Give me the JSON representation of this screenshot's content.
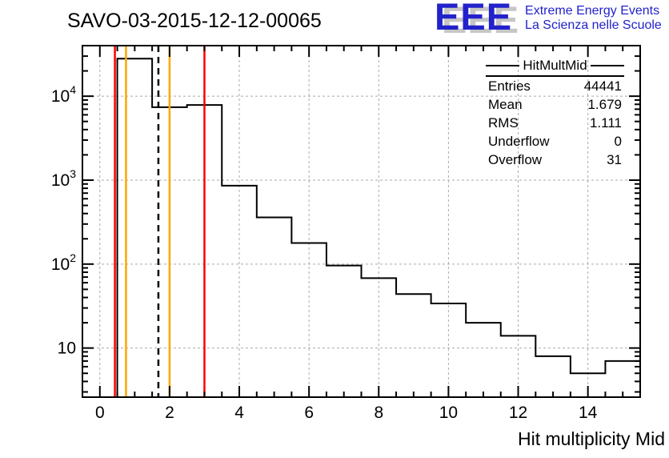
{
  "header": {
    "title": "SAVO-03-2015-12-12-00065",
    "logo": {
      "acronym": "EEE",
      "line1": "Extreme Energy Events",
      "line2": "La Scienza nelle Scuole",
      "color": "#2222cc",
      "shadow_color": "#c6c6c6"
    }
  },
  "stats_box": {
    "title": "HitMultMid",
    "rows": [
      {
        "label": "Entries",
        "value": "44441"
      },
      {
        "label": "Mean",
        "value": "1.679"
      },
      {
        "label": "RMS",
        "value": "1.111"
      },
      {
        "label": "Underflow",
        "value": "0"
      },
      {
        "label": "Overflow",
        "value": "31"
      }
    ]
  },
  "chart_data": {
    "type": "bar",
    "title": "SAVO-03-2015-12-12-00065",
    "xlabel": "Hit multiplicity Mid",
    "ylabel": "",
    "x_scale": "linear",
    "y_scale": "log",
    "xlim": [
      -0.5,
      15.5
    ],
    "ylim": [
      2.6,
      40000
    ],
    "x_major_ticks": [
      0,
      2,
      4,
      6,
      8,
      10,
      12,
      14
    ],
    "x_minor_step": 0.5,
    "y_major_ticks": [
      10,
      100,
      1000,
      10000
    ],
    "grid": true,
    "grid_color": "#aaaaaa",
    "frame_color": "#000000",
    "histogram": {
      "name": "HitMultMid",
      "bin_width": 1,
      "bin_centers": [
        0,
        1,
        2,
        3,
        4,
        5,
        6,
        7,
        8,
        9,
        10,
        11,
        12,
        13,
        14,
        15
      ],
      "counts": [
        0,
        28000,
        7400,
        7850,
        860,
        360,
        178,
        96,
        68,
        44,
        34,
        20,
        14,
        8,
        5,
        7
      ],
      "line_color": "#000000"
    },
    "marker_lines": [
      {
        "x": 0.5,
        "color": "#ff0000",
        "style": "solid",
        "meaning": "red cut line"
      },
      {
        "x": 0.75,
        "color": "#ffa500",
        "style": "solid",
        "meaning": "orange cut line"
      },
      {
        "x": 1.679,
        "color": "#000000",
        "style": "dashed",
        "meaning": "mean line"
      },
      {
        "x": 2.0,
        "color": "#ffa500",
        "style": "solid",
        "meaning": "orange cut line"
      },
      {
        "x": 3.0,
        "color": "#ff0000",
        "style": "solid",
        "meaning": "red cut line"
      }
    ]
  }
}
